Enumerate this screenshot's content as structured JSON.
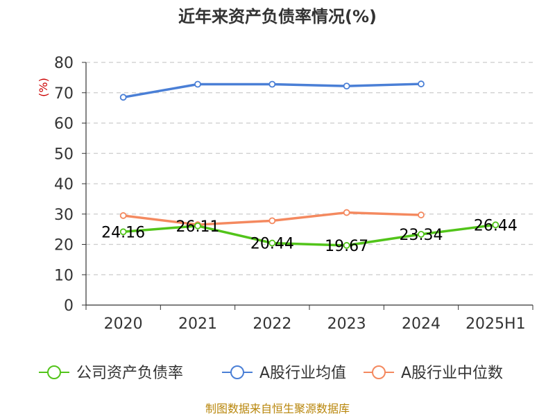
{
  "chart_data": {
    "type": "line",
    "title": "近年来资产负债率情况(%)",
    "y_unit_label": "(%)",
    "categories": [
      "2020",
      "2021",
      "2022",
      "2023",
      "2024",
      "2025H1"
    ],
    "ylim": [
      0,
      80
    ],
    "y_ticks": [
      "0",
      "10",
      "20",
      "30",
      "40",
      "50",
      "60",
      "70",
      "80"
    ],
    "grid": true,
    "legend_position": "bottom",
    "series": [
      {
        "name": "公司资产负债率",
        "color": "#52c41a",
        "values": [
          24.16,
          26.11,
          20.44,
          19.67,
          23.34,
          26.44
        ],
        "labels": [
          "24.16",
          "26.11",
          "20.44",
          "19.67",
          "23.34",
          "26.44"
        ]
      },
      {
        "name": "A股行业均值",
        "color": "#4a7fd6",
        "values": [
          68.5,
          72.8,
          72.8,
          72.2,
          72.9,
          null
        ]
      },
      {
        "name": "A股行业中位数",
        "color": "#f4895f",
        "values": [
          29.5,
          26.5,
          27.8,
          30.5,
          29.7,
          null
        ]
      }
    ]
  },
  "source": "制图数据来自恒生聚源数据库"
}
